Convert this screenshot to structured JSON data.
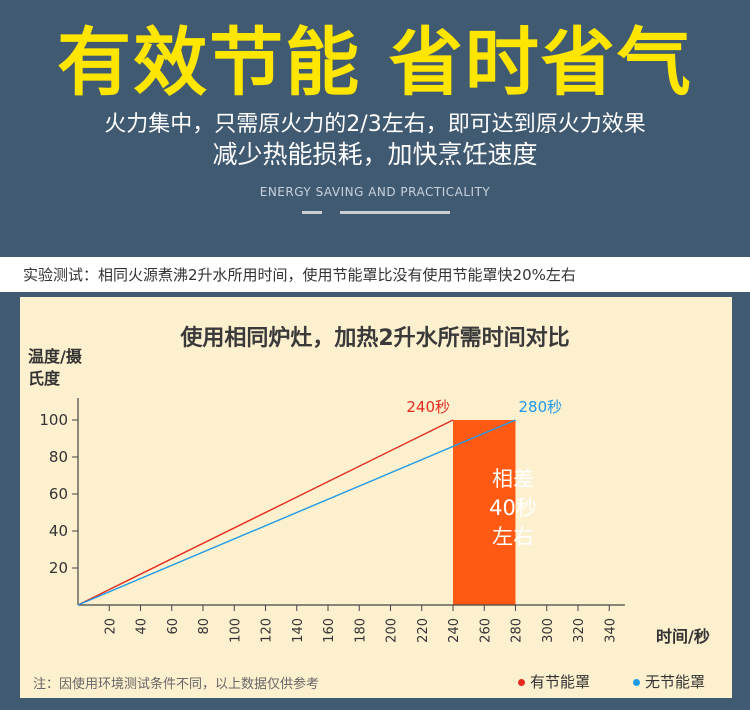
{
  "header": {
    "headline": "有效节能 省时省气",
    "line1": "火力集中，只需原火力的2/3左右，即可达到原火力效果",
    "line2": "减少热能损耗，加快烹饪速度",
    "english": "ENERGY SAVING AND PRACTICALITY"
  },
  "test_note": "实验测试：相同火源煮沸2升水所用时间，使用节能罩比没有使用节能罩快20%左右",
  "footnote": "注：因使用环境测试条件不同，以上数据仅供参考",
  "gap_label": [
    "相差",
    "40秒",
    "左右"
  ],
  "colors": {
    "with_cover": "#e52b1e",
    "without_cover": "#1e9ae6",
    "gap_bar": "#ff5a14",
    "headline": "#ffe600",
    "background": "#405a72",
    "panel": "#fdf0cf"
  },
  "chart_data": {
    "type": "line",
    "title": "使用相同炉灶，加热2升水所需时间对比",
    "ylabel": "温度/摄氏度",
    "xlabel": "时间/秒",
    "xlim": [
      0,
      350
    ],
    "ylim": [
      0,
      110
    ],
    "xticks": [
      20,
      40,
      60,
      80,
      100,
      120,
      140,
      160,
      180,
      200,
      220,
      240,
      260,
      280,
      300,
      320,
      340
    ],
    "yticks": [
      20,
      40,
      60,
      80,
      100
    ],
    "series": [
      {
        "name": "有节能罩",
        "color": "#e52b1e",
        "x": [
          0,
          240
        ],
        "y": [
          0,
          100
        ],
        "end_label": "240秒"
      },
      {
        "name": "无节能罩",
        "color": "#1e9ae6",
        "x": [
          0,
          280
        ],
        "y": [
          0,
          100
        ],
        "end_label": "280秒"
      }
    ],
    "highlight": {
      "x_from": 240,
      "x_to": 280,
      "y_top": 100
    },
    "legend_position": "bottom-right"
  }
}
